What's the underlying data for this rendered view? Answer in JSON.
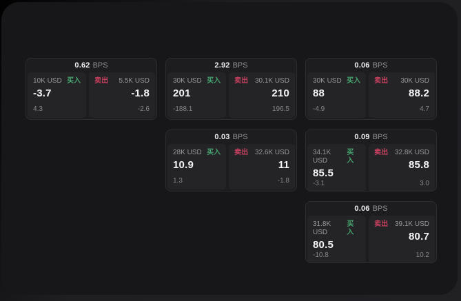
{
  "labels": {
    "buy": "买入",
    "sell": "卖出",
    "bps_unit": "BPS"
  },
  "colors": {
    "buy_green": "#46a56e",
    "sell_red": "#c9405f",
    "surface": "#171719",
    "card_bg": "#1d1d1f",
    "tile_bg": "#242427",
    "text_primary": "#f5f5f6",
    "text_secondary": "#98989d"
  },
  "cards": [
    {
      "bps": "0.62",
      "buy": {
        "size": "10K USD",
        "main": "-3.7",
        "sub": "4.3"
      },
      "sell": {
        "size": "5.5K USD",
        "main": "-1.8",
        "sub": "-2.6"
      }
    },
    {
      "bps": "2.92",
      "buy": {
        "size": "30K USD",
        "main": "201",
        "sub": "-188.1"
      },
      "sell": {
        "size": "30.1K USD",
        "main": "210",
        "sub": "196.5"
      }
    },
    {
      "bps": "0.06",
      "buy": {
        "size": "30K USD",
        "main": "88",
        "sub": "-4.9"
      },
      "sell": {
        "size": "30K USD",
        "main": "88.2",
        "sub": "4.7"
      }
    },
    {
      "bps": "0.03",
      "buy": {
        "size": "28K USD",
        "main": "10.9",
        "sub": "1.3"
      },
      "sell": {
        "size": "32.6K USD",
        "main": "11",
        "sub": "-1.8"
      }
    },
    {
      "bps": "0.09",
      "buy": {
        "size": "34.1K USD",
        "main": "85.5",
        "sub": "-3.1"
      },
      "sell": {
        "size": "32.8K USD",
        "main": "85.8",
        "sub": "3.0"
      }
    },
    {
      "bps": "0.06",
      "buy": {
        "size": "31.8K USD",
        "main": "80.5",
        "sub": "-10.8"
      },
      "sell": {
        "size": "39.1K USD",
        "main": "80.7",
        "sub": "10.2"
      }
    }
  ]
}
